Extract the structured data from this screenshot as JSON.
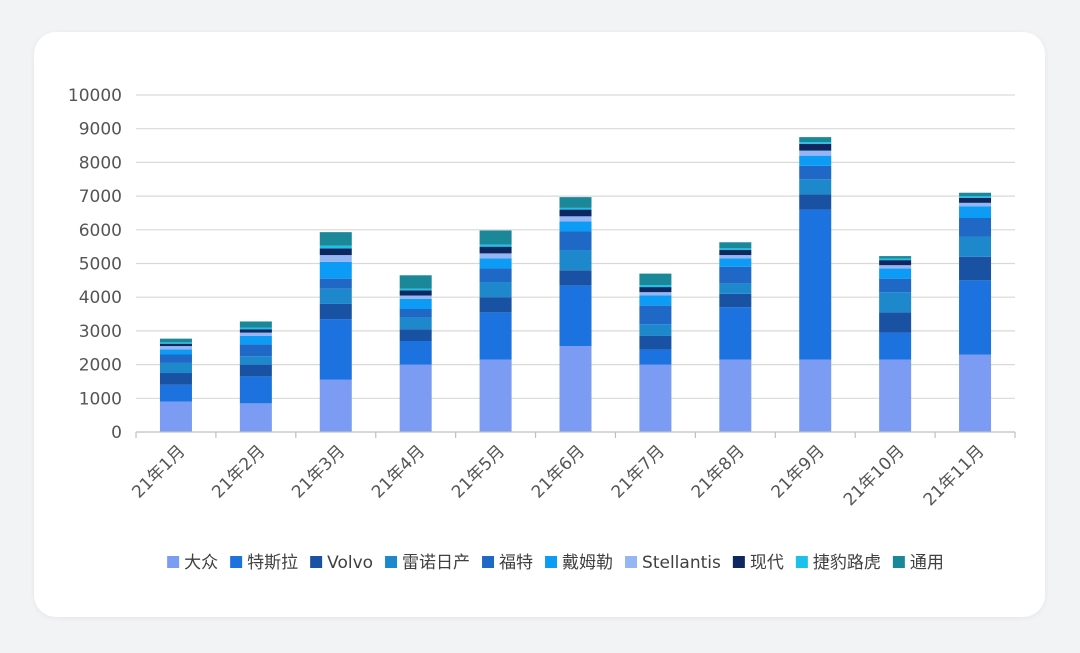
{
  "chart_data": {
    "type": "bar",
    "stacked": true,
    "categories": [
      "21年1月",
      "21年2月",
      "21年3月",
      "21年4月",
      "21年5月",
      "21年6月",
      "21年7月",
      "21年8月",
      "21年9月",
      "21年10月",
      "21年11月"
    ],
    "ylim": [
      0,
      10000
    ],
    "yticks": [
      0,
      1000,
      2000,
      3000,
      4000,
      5000,
      6000,
      7000,
      8000,
      9000,
      10000
    ],
    "grid": true,
    "legend_position": "bottom",
    "series": [
      {
        "name": "大众",
        "color": "#7b9cf2",
        "values": [
          900,
          850,
          1550,
          2000,
          2150,
          2550,
          2000,
          2150,
          2150,
          2150,
          2300
        ]
      },
      {
        "name": "特斯拉",
        "color": "#1c73df",
        "values": [
          500,
          800,
          1800,
          700,
          1400,
          1800,
          450,
          1550,
          4450,
          800,
          2200
        ]
      },
      {
        "name": "Volvo",
        "color": "#1a52a3",
        "values": [
          350,
          350,
          450,
          350,
          450,
          450,
          400,
          400,
          450,
          600,
          700
        ]
      },
      {
        "name": "雷诺日产",
        "color": "#1e88cc",
        "values": [
          300,
          250,
          450,
          350,
          450,
          600,
          350,
          300,
          450,
          600,
          600
        ]
      },
      {
        "name": "福特",
        "color": "#1f68c6",
        "values": [
          250,
          350,
          300,
          250,
          400,
          550,
          550,
          500,
          400,
          400,
          550
        ]
      },
      {
        "name": "戴姆勒",
        "color": "#0d9cf5",
        "values": [
          150,
          250,
          500,
          300,
          300,
          300,
          300,
          250,
          300,
          300,
          350
        ]
      },
      {
        "name": "Stellantis",
        "color": "#95b5f5",
        "values": [
          100,
          100,
          200,
          100,
          150,
          150,
          100,
          100,
          150,
          100,
          100
        ]
      },
      {
        "name": "现代",
        "color": "#0d2860",
        "values": [
          70,
          100,
          200,
          150,
          200,
          200,
          150,
          150,
          200,
          150,
          150
        ]
      },
      {
        "name": "捷豹路虎",
        "color": "#1bc1e8",
        "values": [
          40,
          50,
          80,
          50,
          60,
          50,
          60,
          50,
          50,
          50,
          50
        ]
      },
      {
        "name": "通用",
        "color": "#1b889a",
        "values": [
          110,
          180,
          400,
          400,
          420,
          320,
          340,
          180,
          150,
          70,
          100
        ]
      }
    ]
  }
}
